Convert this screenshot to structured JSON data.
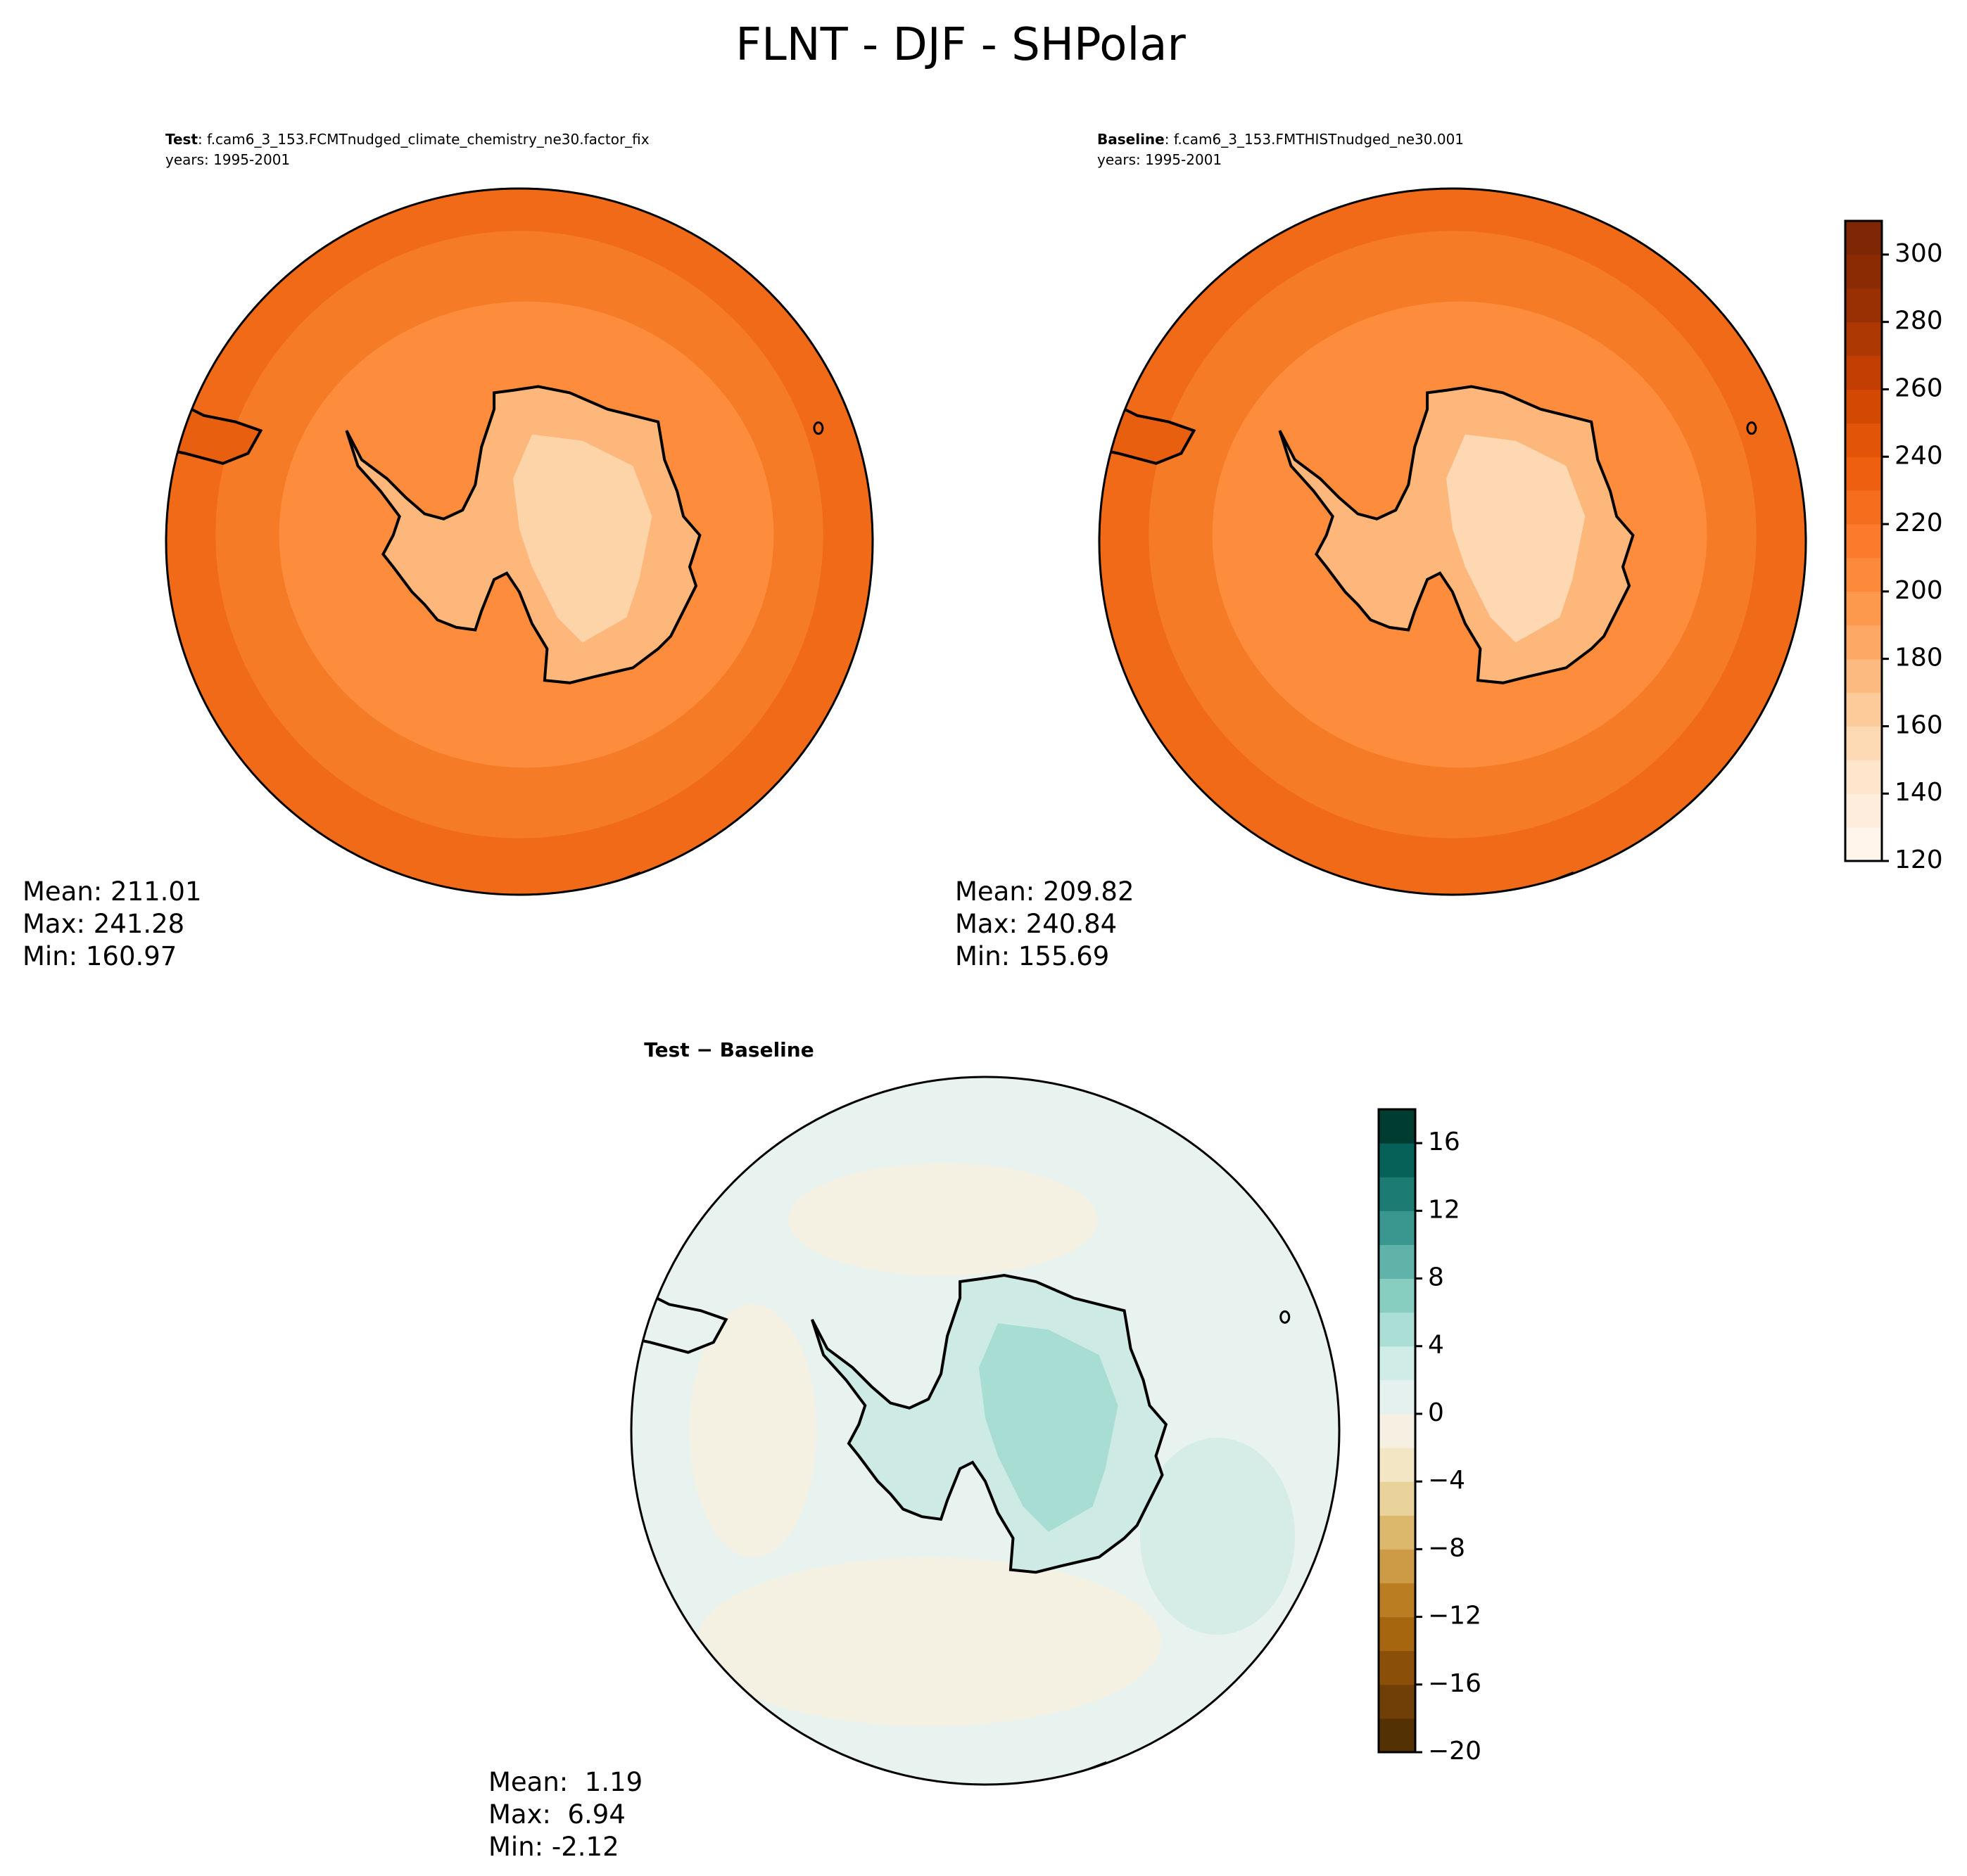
{
  "title": "FLNT - DJF - SHPolar",
  "panels": [
    {
      "label": "Test",
      "case": ": f.cam6_3_153.FCMTnudged_climate_chemistry_ne30.factor_fix",
      "years": "years: 1995-2001",
      "stats": [
        "Mean: 211.01",
        "Max: 241.28",
        "Min: 160.97"
      ]
    },
    {
      "label": "Baseline",
      "case": ": f.cam6_3_153.FMTHISTnudged_ne30.001",
      "years": "years: 1995-2001",
      "stats": [
        "Mean: 209.82",
        "Max: 240.84",
        "Min: 155.69"
      ]
    },
    {
      "label": "Test − Baseline",
      "stats": [
        "Mean:  1.19",
        "Max:  6.94",
        "Min: -2.12"
      ]
    }
  ],
  "colorbars": [
    {
      "lim": [
        120,
        310
      ],
      "ticks": [
        120,
        140,
        160,
        180,
        200,
        220,
        240,
        260,
        280,
        300
      ],
      "colors": [
        "#fff5eb",
        "#feeddc",
        "#fee5cb",
        "#fdd9b4",
        "#fdcb9a",
        "#fdba7f",
        "#fda965",
        "#fd994d",
        "#fd8a3b",
        "#fb7a2b",
        "#f66d1d",
        "#ee6010",
        "#e25408",
        "#d34803",
        "#c23e02",
        "#ad3803",
        "#983003",
        "#8a2b04",
        "#7f2704"
      ]
    },
    {
      "lim": [
        -20,
        18
      ],
      "ticks": [
        {
          "value": -20,
          "label": "−20"
        },
        {
          "value": -16,
          "label": "−16"
        },
        {
          "value": -12,
          "label": "−12"
        },
        {
          "value": -8,
          "label": "−8"
        },
        {
          "value": -4,
          "label": "−4"
        },
        0,
        4,
        8,
        12,
        16
      ],
      "colors": [
        "#543005",
        "#6f3f07",
        "#8a5009",
        "#a6660f",
        "#bb7d22",
        "#cd9a46",
        "#dcb86d",
        "#e9d39b",
        "#f3e6c4",
        "#f5f0e1",
        "#e5f1ef",
        "#d0ece7",
        "#abdfd5",
        "#87cdc0",
        "#5fb3a9",
        "#3a978f",
        "#1c7b72",
        "#066159",
        "#003c30"
      ]
    }
  ]
}
